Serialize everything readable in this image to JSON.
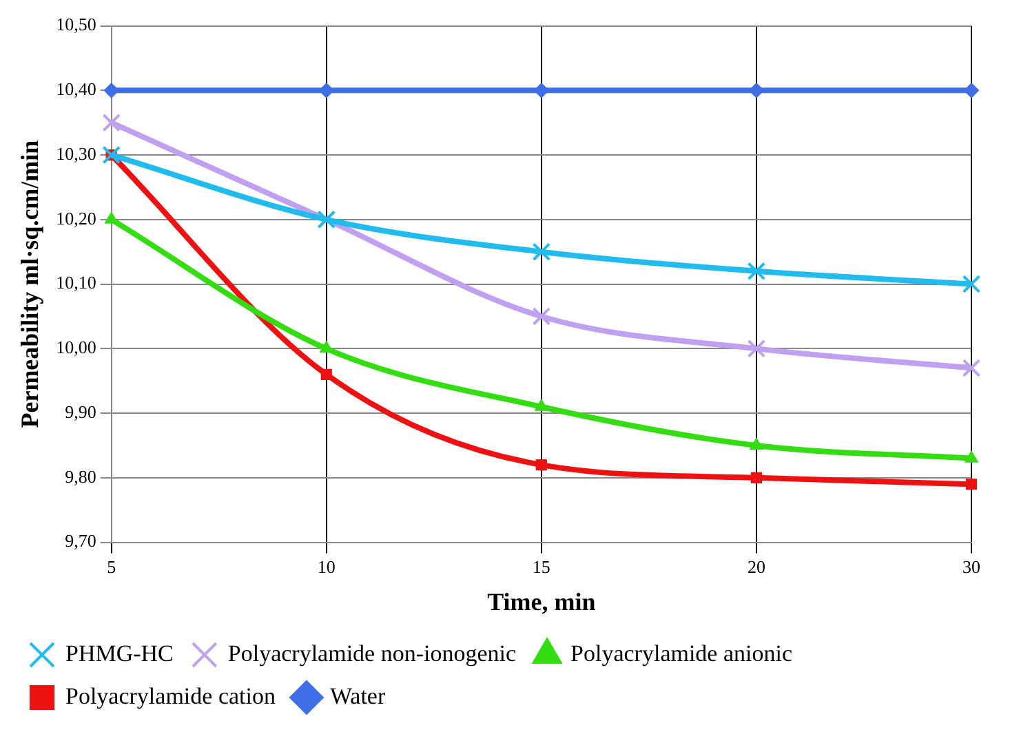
{
  "chart_data": {
    "type": "line",
    "xlabel": "Time, min",
    "ylabel": "Permeability ml·sq.cm/min",
    "categories": [
      "5",
      "10",
      "15",
      "20",
      "30"
    ],
    "series": [
      {
        "name": "Water",
        "color": "#3f6fe6",
        "marker": "diamond",
        "values": [
          10.4,
          10.4,
          10.4,
          10.4,
          10.4
        ]
      },
      {
        "name": "Polyacrylamide cation",
        "color": "#ee1111",
        "marker": "square",
        "values": [
          10.3,
          9.96,
          9.82,
          9.8,
          9.79
        ]
      },
      {
        "name": "Polyacrylamide anionic",
        "color": "#33dd11",
        "marker": "triangle",
        "values": [
          10.2,
          10.0,
          9.91,
          9.85,
          9.83
        ]
      },
      {
        "name": "Polyacrylamide non-ionogenic",
        "color": "#c0a0f0",
        "marker": "cross",
        "values": [
          10.35,
          10.2,
          10.05,
          10.0,
          9.97
        ]
      },
      {
        "name": "PHMG-HC",
        "color": "#22bbee",
        "marker": "cross",
        "values": [
          10.3,
          10.2,
          10.15,
          10.12,
          10.1
        ]
      }
    ],
    "ylim": [
      9.7,
      10.5
    ],
    "yticks": [
      {
        "value": 9.7,
        "label": "9,70"
      },
      {
        "value": 9.8,
        "label": "9,80"
      },
      {
        "value": 9.9,
        "label": "9,90"
      },
      {
        "value": 10.0,
        "label": "10,00"
      },
      {
        "value": 10.1,
        "label": "10,10"
      },
      {
        "value": 10.2,
        "label": "10,20"
      },
      {
        "value": 10.3,
        "label": "10,30"
      },
      {
        "value": 10.4,
        "label": "10,40"
      },
      {
        "value": 10.5,
        "label": "10,50"
      }
    ],
    "grid": true,
    "legend": "bottom"
  }
}
